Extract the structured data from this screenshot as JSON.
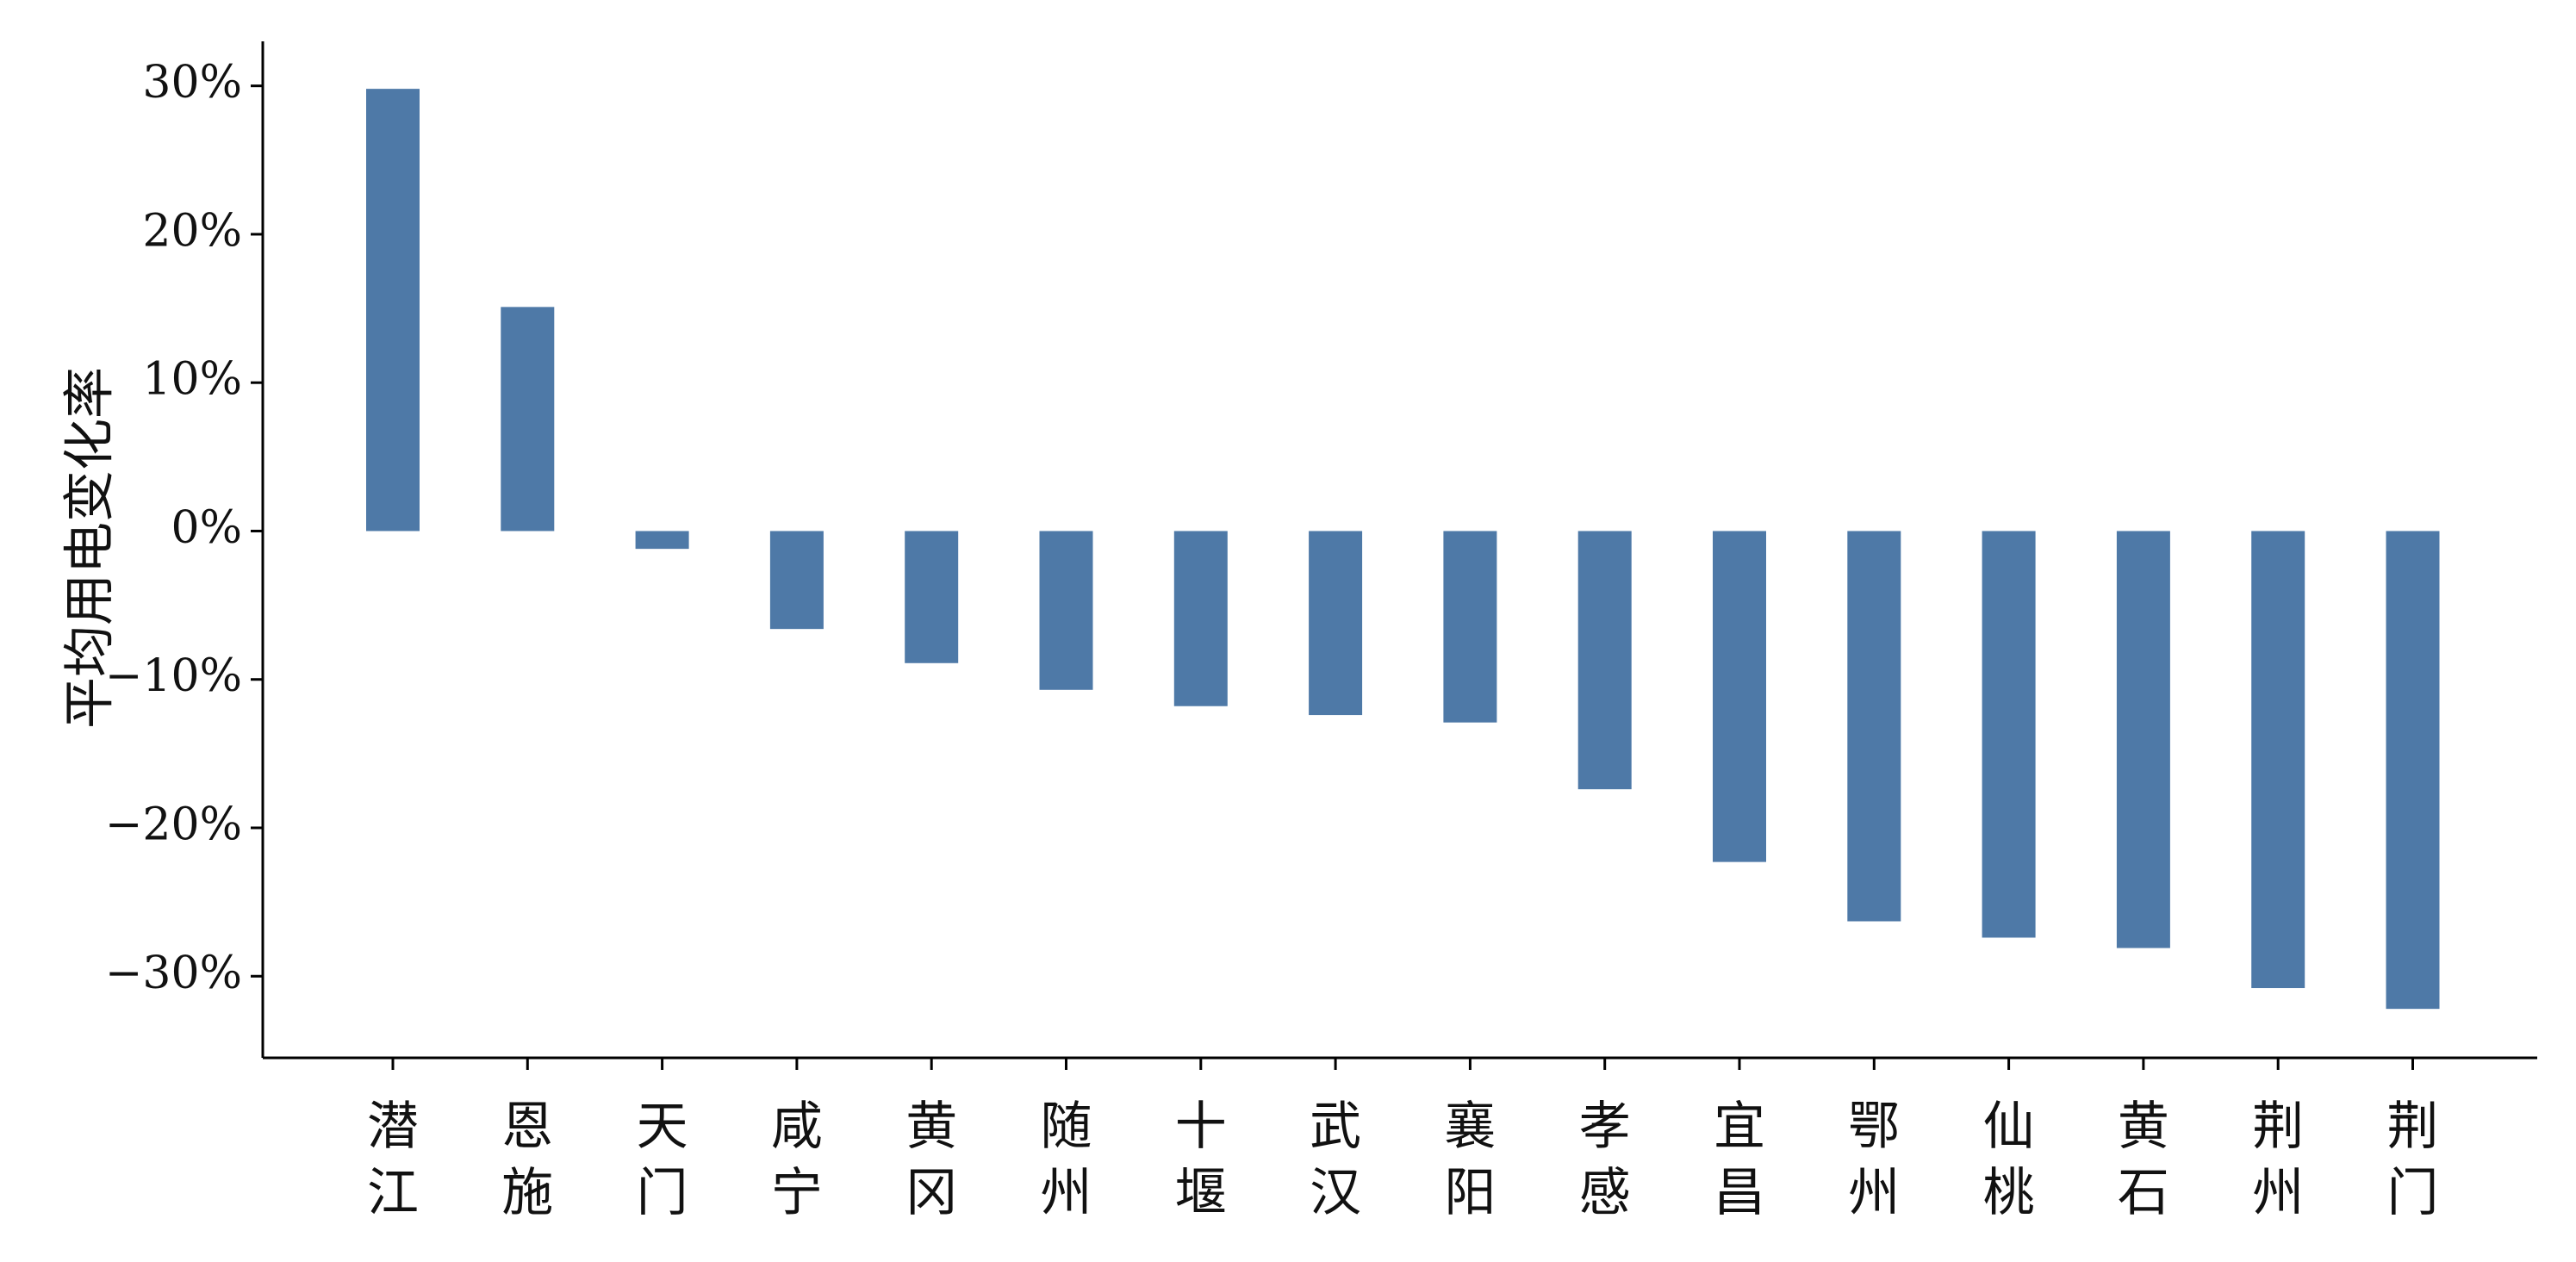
{
  "chart_data": {
    "type": "bar",
    "title": "",
    "xlabel": "",
    "ylabel": "平均用电变化率",
    "categories": [
      "潜江",
      "恩施",
      "天门",
      "咸宁",
      "黄冈",
      "随州",
      "十堰",
      "武汉",
      "襄阳",
      "孝感",
      "宜昌",
      "鄂州",
      "仙桃",
      "黄石",
      "荆州",
      "荆门"
    ],
    "values": [
      29.8,
      15.1,
      -1.2,
      -6.6,
      -8.9,
      -10.7,
      -11.8,
      -12.4,
      -12.9,
      -17.4,
      -22.3,
      -26.3,
      -27.4,
      -28.1,
      -30.8,
      -32.2
    ],
    "value_format": "percent",
    "ylim": [
      -35.5,
      33
    ],
    "yticks": [
      30,
      20,
      10,
      0,
      -10,
      -20,
      -30
    ],
    "ytick_labels": [
      "30%",
      "20%",
      "10%",
      "0%",
      "−10%",
      "−20%",
      "−30%"
    ],
    "bar_color": "#4e79a7",
    "grid": false,
    "legend": "none"
  }
}
